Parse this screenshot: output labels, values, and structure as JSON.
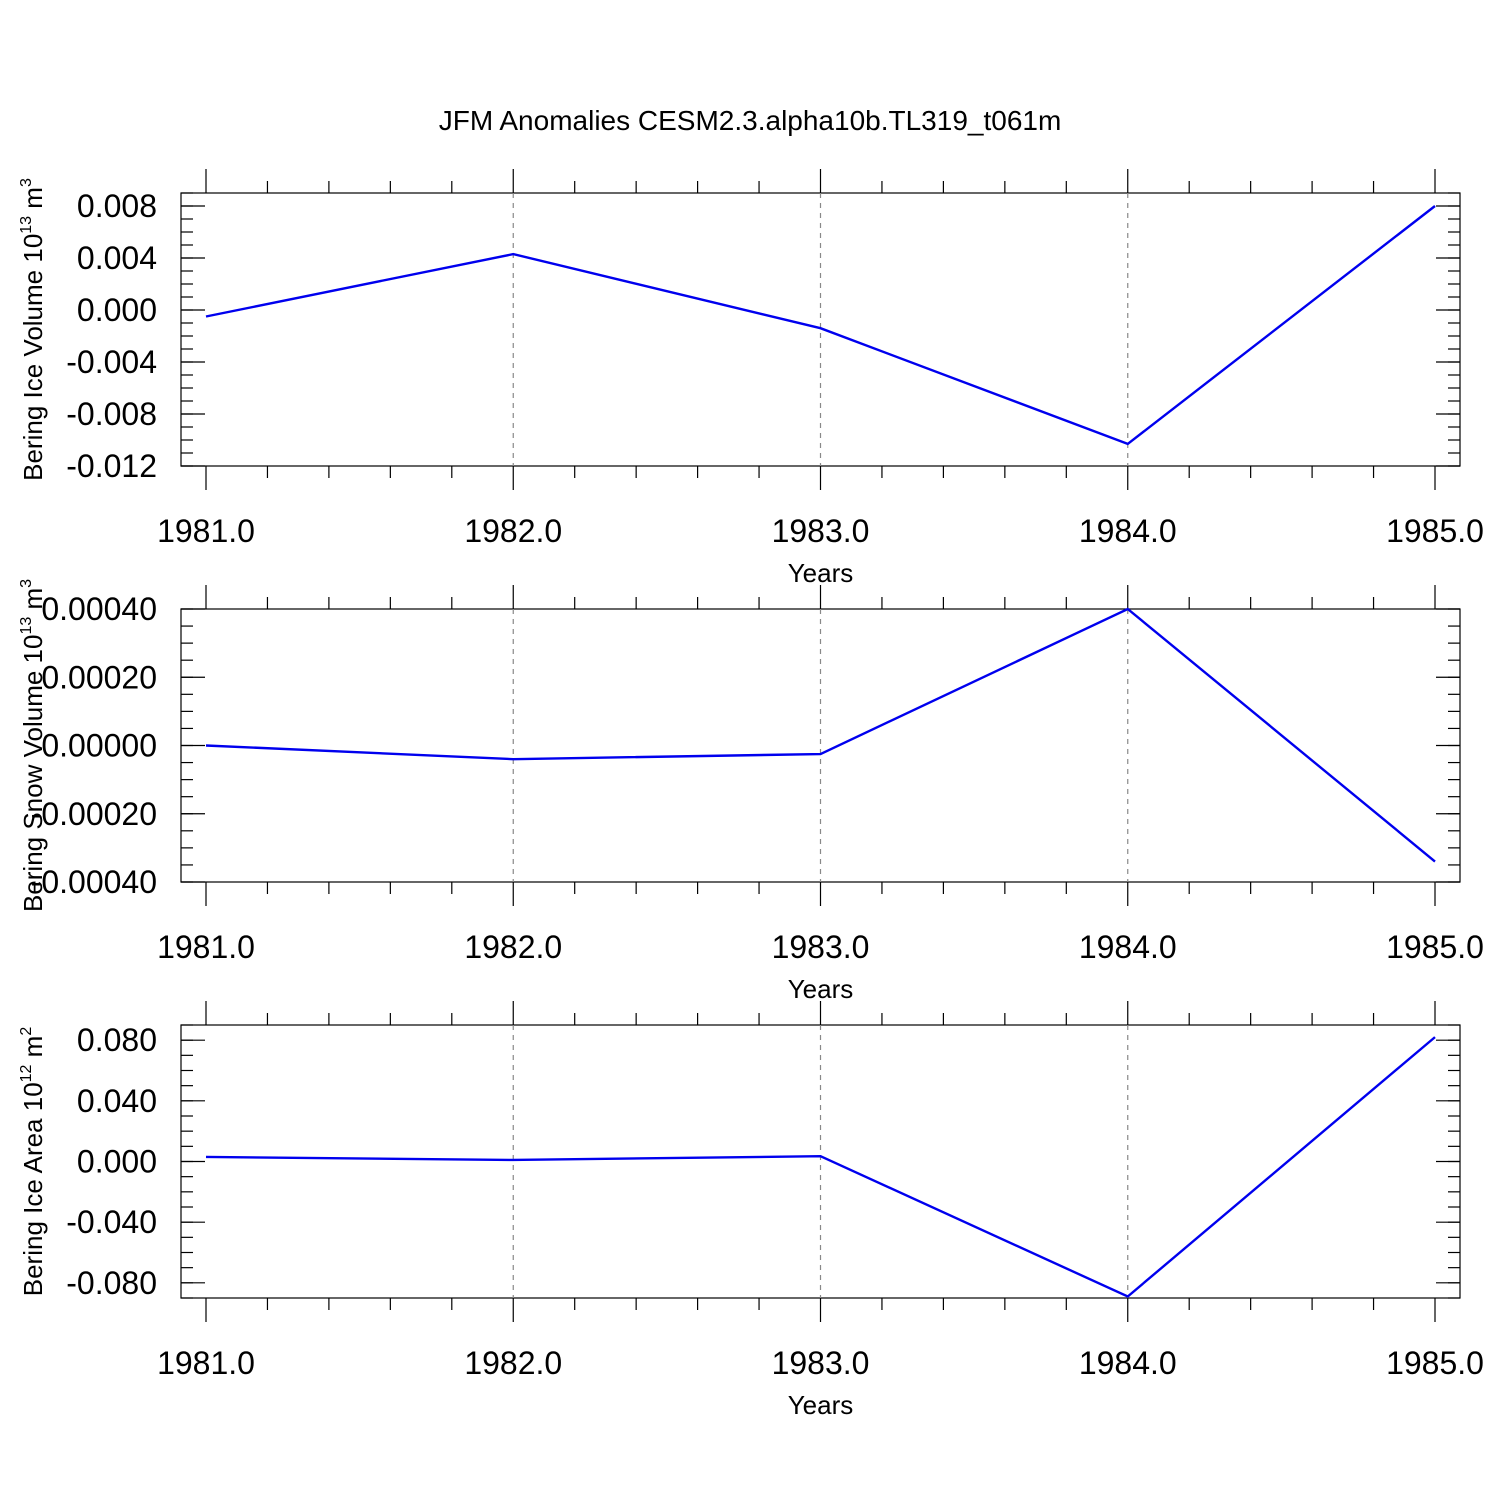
{
  "figure": {
    "title": "JFM Anomalies CESM2.3.alpha10b.TL319_t061m"
  },
  "chart_data": [
    {
      "type": "line",
      "title": "",
      "xlabel": "Years",
      "ylabel": "Bering Ice Volume 10",
      "ylabel_sup": "13",
      "ylabel_unit": " m",
      "ylabel_unit_sup": "3",
      "x": [
        1981.0,
        1982.0,
        1983.0,
        1984.0,
        1985.0
      ],
      "xticks": [
        "1981.0",
        "1982.0",
        "1983.0",
        "1984.0",
        "1985.0"
      ],
      "xlim": [
        1981.0,
        1985.0
      ],
      "ylim": [
        -0.012,
        0.009
      ],
      "yticks": [
        0.008,
        0.004,
        0.0,
        -0.004,
        -0.008,
        -0.012
      ],
      "yticklabels": [
        "0.008",
        "0.004",
        "0.000",
        "-0.004",
        "-0.008",
        "-0.012"
      ],
      "series": [
        {
          "values": [
            -0.0005,
            0.0043,
            -0.0014,
            -0.0103,
            0.008
          ],
          "color": "#0000ee"
        }
      ],
      "grid": "x-dashed"
    },
    {
      "type": "line",
      "title": "",
      "xlabel": "Years",
      "ylabel": "Bering Snow Volume 10",
      "ylabel_sup": "13",
      "ylabel_unit": " m",
      "ylabel_unit_sup": "3",
      "x": [
        1981.0,
        1982.0,
        1983.0,
        1984.0,
        1985.0
      ],
      "xticks": [
        "1981.0",
        "1982.0",
        "1983.0",
        "1984.0",
        "1985.0"
      ],
      "xlim": [
        1981.0,
        1985.0
      ],
      "ylim": [
        -0.0004,
        0.0004
      ],
      "yticks": [
        0.0004,
        0.0002,
        0.0,
        -0.0002,
        -0.0004
      ],
      "yticklabels": [
        "0.00040",
        "0.00020",
        "0.00000",
        "-0.00020",
        "-0.00040"
      ],
      "series": [
        {
          "values": [
            0.0,
            -4e-05,
            -2.5e-05,
            0.0004,
            -0.00034
          ],
          "color": "#0000ee"
        }
      ],
      "grid": "x-dashed"
    },
    {
      "type": "line",
      "title": "",
      "xlabel": "Years",
      "ylabel": "Bering Ice Area 10",
      "ylabel_sup": "12",
      "ylabel_unit": " m",
      "ylabel_unit_sup": "2",
      "x": [
        1981.0,
        1982.0,
        1983.0,
        1984.0,
        1985.0
      ],
      "xticks": [
        "1981.0",
        "1982.0",
        "1983.0",
        "1984.0",
        "1985.0"
      ],
      "xlim": [
        1981.0,
        1985.0
      ],
      "ylim": [
        -0.09,
        0.09
      ],
      "yticks": [
        0.08,
        0.04,
        0.0,
        -0.04,
        -0.08
      ],
      "yticklabels": [
        "0.080",
        "0.040",
        "0.000",
        "-0.040",
        "-0.080"
      ],
      "series": [
        {
          "values": [
            0.003,
            0.001,
            0.0035,
            -0.089,
            0.082
          ],
          "color": "#0000ee"
        }
      ],
      "grid": "x-dashed"
    }
  ]
}
